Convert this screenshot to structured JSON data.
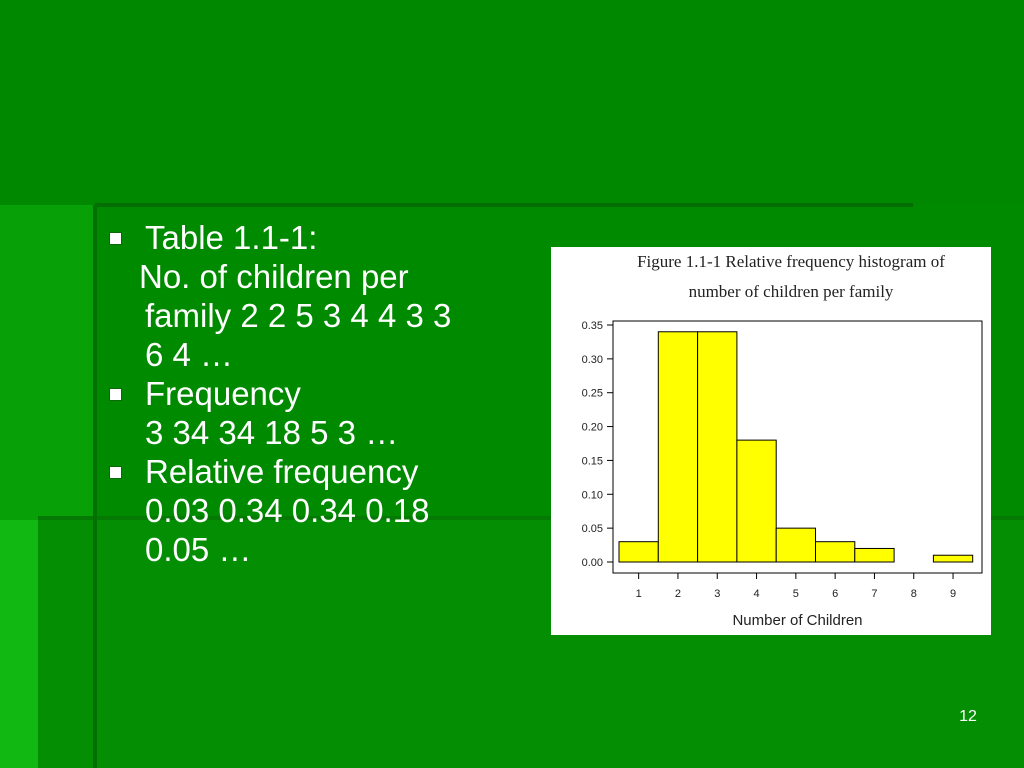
{
  "slide": {
    "bullets": [
      {
        "lines": [
          "Table 1.1-1:"
        ]
      },
      {
        "lines": [
          " No. of children per",
          "family 2 2 5 3 4 4 3 3",
          "6 4 …"
        ],
        "indented": true
      },
      {
        "lines": [
          "Frequency",
          "3 34 34 18 5 3 …"
        ]
      },
      {
        "lines": [
          "Relative frequency",
          "0.03 0.34 0.34 0.18",
          "0.05 …"
        ]
      }
    ],
    "page_number": "12"
  },
  "figure": {
    "title_line1": "Figure 1.1-1 Relative frequency histogram of",
    "title_line2": "number of children per family"
  },
  "chart_data": {
    "type": "bar",
    "title": "Figure 1.1-1 Relative frequency histogram of number of children per family",
    "xlabel": "Number of Children",
    "ylabel": "",
    "categories": [
      "1",
      "2",
      "3",
      "4",
      "5",
      "6",
      "7",
      "8",
      "9"
    ],
    "values": [
      0.03,
      0.34,
      0.34,
      0.18,
      0.05,
      0.03,
      0.02,
      0.0,
      0.01
    ],
    "ylim": [
      0,
      0.35
    ],
    "yticks": [
      "0.00",
      "0.05",
      "0.10",
      "0.15",
      "0.20",
      "0.25",
      "0.30",
      "0.35"
    ],
    "bar_color": "#ffff00",
    "grid": false
  },
  "colors": {
    "background": "#008a00",
    "text": "#ffffff"
  }
}
